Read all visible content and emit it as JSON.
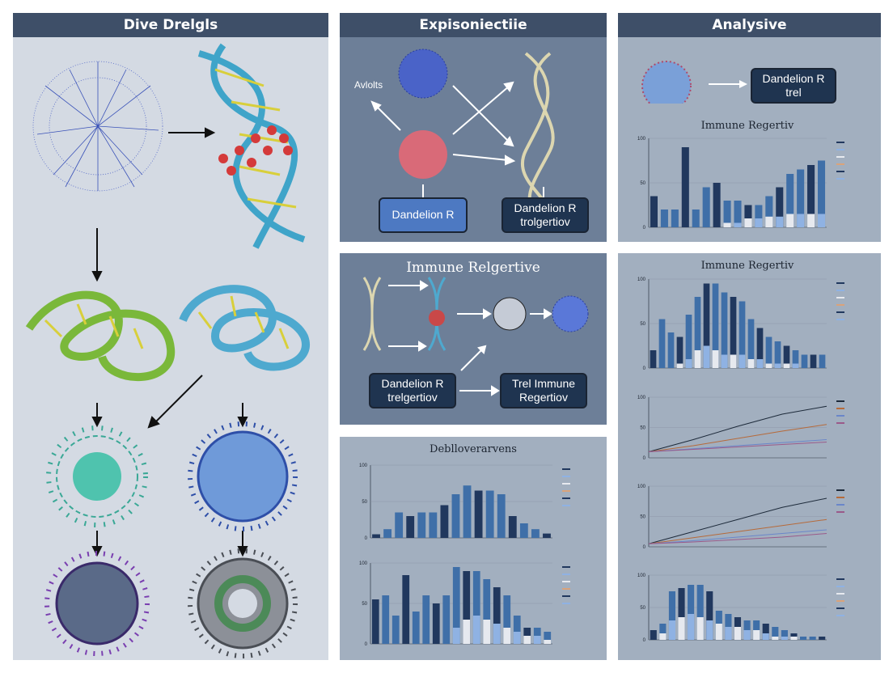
{
  "colors": {
    "panel_light": "#d4dae3",
    "panel_mid": "#6d7f98",
    "panel_gray": "#a2afbf",
    "header": "#3e4f68",
    "box_blue": "#4d79c2",
    "box_dark": "#1f3450",
    "bar_dark": "#21385e",
    "bar_mid": "#3f6fa8",
    "bar_light": "#8fb2e3",
    "bar_pale": "#e6e9ef",
    "bar_orange": "#d9a37b"
  },
  "panels": {
    "left": {
      "title": "Dive Drelgls"
    },
    "middle_top": {
      "title": "Expisoniectiie",
      "label": "Avlolts",
      "box1": {
        "line1": "Dandelion R"
      },
      "box2": {
        "line1": "Dandelion R",
        "line2": "trolgertiov"
      }
    },
    "right_top": {
      "title": "Analysive",
      "box": {
        "line1": "Dandelion R",
        "line2": "trel"
      },
      "chart_title": "Immune Regertiv"
    },
    "middle_mid": {
      "title": "Immune Relgertive",
      "box1": {
        "line1": "Dandelion R",
        "line2": "trelgertiov"
      },
      "box2": {
        "line1": "Trel Immune",
        "line2": "Regertiov"
      }
    },
    "middle_bottom": {
      "title": "Deblloverarvens"
    },
    "right_bottom": {
      "chart_title": "Immune Regertiv"
    }
  },
  "chart_data": [
    {
      "id": "right-top-bars",
      "type": "bar",
      "title": "Immune Regertiv",
      "ylim": [
        0,
        100
      ],
      "yticks": [
        "100",
        "50",
        "0"
      ],
      "series": [
        {
          "values": [
            35,
            20,
            20,
            90,
            20,
            45,
            50,
            30,
            30,
            25,
            25,
            35,
            45,
            60,
            65,
            70,
            75
          ]
        },
        {
          "values": [
            0,
            0,
            0,
            0,
            0,
            0,
            0,
            5,
            5,
            10,
            10,
            12,
            12,
            15,
            15,
            15,
            15
          ]
        }
      ]
    },
    {
      "id": "right-mid-bars",
      "type": "bar",
      "title": "Immune Regertiv",
      "ylim": [
        0,
        100
      ],
      "yticks": [
        "100",
        "50",
        "0"
      ],
      "series": [
        {
          "values": [
            20,
            55,
            40,
            35,
            60,
            80,
            95,
            95,
            85,
            80,
            75,
            55,
            45,
            35,
            30,
            25,
            20,
            15,
            15,
            15
          ]
        },
        {
          "values": [
            0,
            0,
            0,
            5,
            10,
            20,
            25,
            20,
            15,
            15,
            15,
            10,
            10,
            5,
            5,
            5,
            5,
            0,
            0,
            0
          ]
        }
      ]
    },
    {
      "id": "right-line-1",
      "type": "line",
      "ylim": [
        0,
        100
      ],
      "yticks": [
        "100",
        "50",
        "0"
      ],
      "series": [
        {
          "values": [
            10,
            30,
            52,
            72,
            85
          ]
        },
        {
          "values": [
            10,
            20,
            32,
            44,
            55
          ]
        },
        {
          "values": [
            10,
            15,
            20,
            25,
            30
          ]
        },
        {
          "values": [
            10,
            14,
            18,
            22,
            26
          ]
        }
      ]
    },
    {
      "id": "right-line-2",
      "type": "line",
      "ylim": [
        0,
        100
      ],
      "yticks": [
        "100",
        "50",
        "0"
      ],
      "series": [
        {
          "values": [
            5,
            25,
            45,
            65,
            80
          ]
        },
        {
          "values": [
            5,
            15,
            25,
            35,
            45
          ]
        },
        {
          "values": [
            5,
            10,
            16,
            22,
            28
          ]
        },
        {
          "values": [
            5,
            8,
            12,
            16,
            22
          ]
        }
      ]
    },
    {
      "id": "right-bottom-bars",
      "type": "bar",
      "ylim": [
        0,
        100
      ],
      "yticks": [
        "100",
        "50",
        "0"
      ],
      "series": [
        {
          "values": [
            15,
            25,
            75,
            80,
            85,
            85,
            75,
            45,
            40,
            35,
            30,
            30,
            25,
            20,
            15,
            10,
            5,
            5,
            5
          ]
        },
        {
          "values": [
            0,
            10,
            30,
            35,
            40,
            35,
            30,
            25,
            20,
            20,
            15,
            15,
            10,
            5,
            5,
            5,
            0,
            0,
            0
          ]
        }
      ]
    },
    {
      "id": "middle-bars-1",
      "type": "bar",
      "title": "Deblloverarvens",
      "ylim": [
        0,
        100
      ],
      "yticks": [
        "100",
        "50",
        "0"
      ],
      "series": [
        {
          "values": [
            5,
            12,
            35,
            30,
            35,
            35,
            45,
            60,
            72,
            65,
            65,
            60,
            30,
            20,
            12,
            6
          ]
        }
      ]
    },
    {
      "id": "middle-bars-2",
      "type": "bar",
      "ylim": [
        0,
        100
      ],
      "yticks": [
        "100",
        "50",
        "0"
      ],
      "series": [
        {
          "values": [
            55,
            60,
            35,
            85,
            40,
            60,
            50,
            60,
            95,
            90,
            90,
            80,
            70,
            60,
            35,
            20,
            20,
            15
          ]
        },
        {
          "values": [
            0,
            0,
            0,
            0,
            0,
            0,
            0,
            0,
            20,
            30,
            35,
            30,
            25,
            20,
            15,
            10,
            10,
            5
          ]
        }
      ]
    }
  ]
}
